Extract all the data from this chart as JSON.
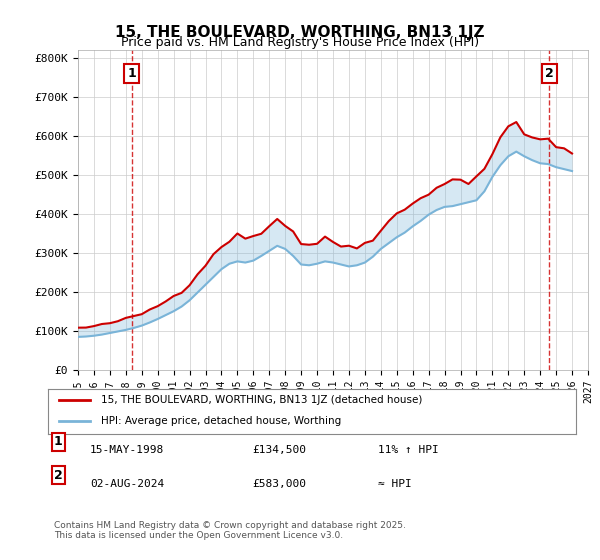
{
  "title": "15, THE BOULEVARD, WORTHING, BN13 1JZ",
  "subtitle": "Price paid vs. HM Land Registry's House Price Index (HPI)",
  "legend1": "15, THE BOULEVARD, WORTHING, BN13 1JZ (detached house)",
  "legend2": "HPI: Average price, detached house, Worthing",
  "sale1_label": "1",
  "sale1_date": "15-MAY-1998",
  "sale1_price": "£134,500",
  "sale1_hpi": "11% ↑ HPI",
  "sale2_label": "2",
  "sale2_date": "02-AUG-2024",
  "sale2_price": "£583,000",
  "sale2_hpi": "≈ HPI",
  "footer": "Contains HM Land Registry data © Crown copyright and database right 2025.\nThis data is licensed under the Open Government Licence v3.0.",
  "bg_color": "#ffffff",
  "grid_color": "#cccccc",
  "hpi_color": "#7ab4d8",
  "price_color": "#cc0000",
  "sale1_year": 1998.37,
  "sale1_value": 134500,
  "sale2_year": 2024.58,
  "sale2_value": 583000,
  "xmin": 1995,
  "xmax": 2027,
  "ymin": 0,
  "ymax": 820000
}
